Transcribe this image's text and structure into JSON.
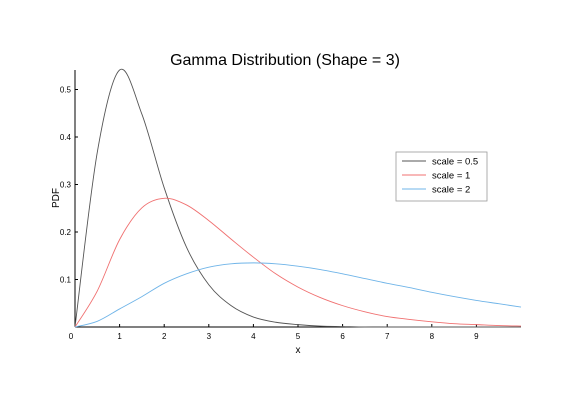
{
  "chart_data": {
    "type": "line",
    "title": "Gamma Distribution (Shape = 3)",
    "xlabel": "x",
    "ylabel": "PDF",
    "xlim": [
      0,
      10
    ],
    "ylim": [
      0,
      0.54
    ],
    "x_ticks": [
      "0",
      "1",
      "2",
      "3",
      "4",
      "5",
      "6",
      "7",
      "8",
      "9"
    ],
    "y_ticks": [
      "0.1",
      "0.2",
      "0.3",
      "0.4",
      "0.5"
    ],
    "grid": false,
    "legend_position": "right",
    "x": [
      0,
      0.5,
      1,
      1.5,
      2,
      2.5,
      3,
      3.5,
      4,
      4.5,
      5,
      5.5,
      6,
      6.5,
      7,
      7.5,
      8,
      8.5,
      9,
      9.5,
      10
    ],
    "series": [
      {
        "name": "scale = 0.5",
        "color": "#555555",
        "values": [
          0,
          0.368,
          0.541,
          0.448,
          0.293,
          0.168,
          0.089,
          0.045,
          0.021,
          0.01,
          0.005,
          0.002,
          0.001,
          0.0,
          0.0,
          0.0,
          0.0,
          0.0,
          0.0,
          0.0,
          0.0
        ]
      },
      {
        "name": "scale = 1",
        "color": "#f07070",
        "values": [
          0,
          0.076,
          0.184,
          0.251,
          0.271,
          0.257,
          0.224,
          0.185,
          0.147,
          0.112,
          0.084,
          0.062,
          0.045,
          0.032,
          0.022,
          0.016,
          0.011,
          0.007,
          0.005,
          0.003,
          0.002
        ]
      },
      {
        "name": "scale = 2",
        "color": "#6fb4e8",
        "values": [
          0,
          0.012,
          0.038,
          0.064,
          0.092,
          0.112,
          0.126,
          0.133,
          0.135,
          0.133,
          0.128,
          0.121,
          0.112,
          0.102,
          0.092,
          0.083,
          0.073,
          0.064,
          0.056,
          0.049,
          0.042
        ]
      }
    ]
  }
}
